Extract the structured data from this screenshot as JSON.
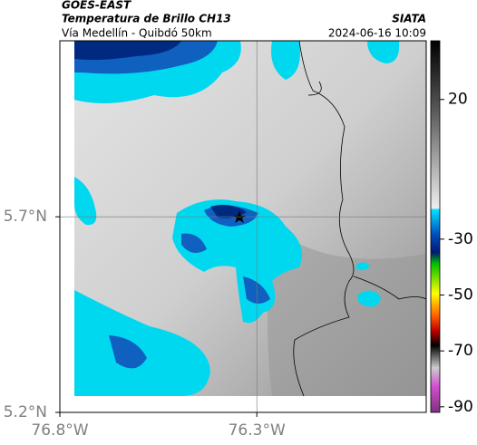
{
  "header": {
    "source": "GOES-EAST",
    "title": "Temperatura de Brillo CH13",
    "subtitle": "Vía Medellín - Quibdó 50km",
    "agency": "SIATA",
    "datetime": "2024-06-16 10:09"
  },
  "map": {
    "xlim": [
      -76.8,
      -75.87
    ],
    "ylim": [
      5.2,
      6.15
    ],
    "xticks": [
      {
        "value": -76.8,
        "label": "76.8°W"
      },
      {
        "value": -76.3,
        "label": "76.3°W"
      }
    ],
    "yticks": [
      {
        "value": 5.7,
        "label": "5.7°N"
      },
      {
        "value": 5.2,
        "label": "5.2°N"
      }
    ],
    "grid": true
  },
  "colorbar": {
    "lim": [
      -92,
      41
    ],
    "ticks": [
      20,
      -30,
      -50,
      -70,
      -90
    ]
  }
}
